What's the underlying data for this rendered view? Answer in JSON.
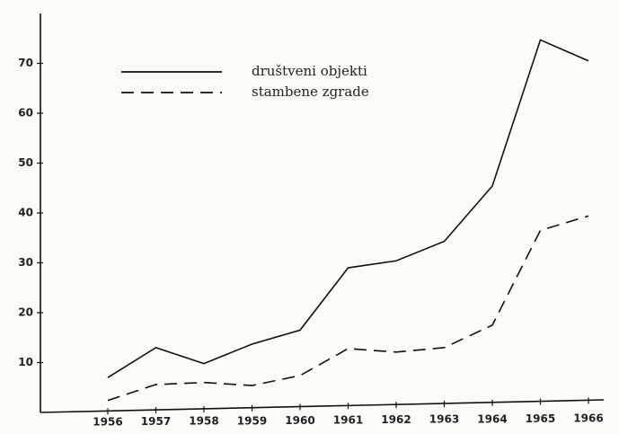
{
  "chart_data": {
    "type": "line",
    "categories": [
      "1956",
      "1957",
      "1958",
      "1959",
      "1960",
      "1961",
      "1962",
      "1963",
      "1964",
      "1965",
      "1966"
    ],
    "series": [
      {
        "name": "društveni objekti",
        "color": "#111111",
        "dash": "solid",
        "values": [
          7,
          13,
          9.8,
          13.7,
          16.5,
          29,
          30.4,
          34.3,
          45.4,
          74.7,
          70.5
        ]
      },
      {
        "name": "stambene zgrade",
        "color": "#111111",
        "dash": "dashed",
        "values": [
          2.4,
          5.6,
          6,
          5.4,
          7.4,
          12.8,
          12.1,
          13,
          17.5,
          36.5,
          39.4
        ]
      }
    ],
    "ylim": [
      0,
      80
    ],
    "yticks": [
      10,
      20,
      30,
      40,
      50,
      60,
      70
    ],
    "grid": false,
    "legend": "upper left"
  }
}
